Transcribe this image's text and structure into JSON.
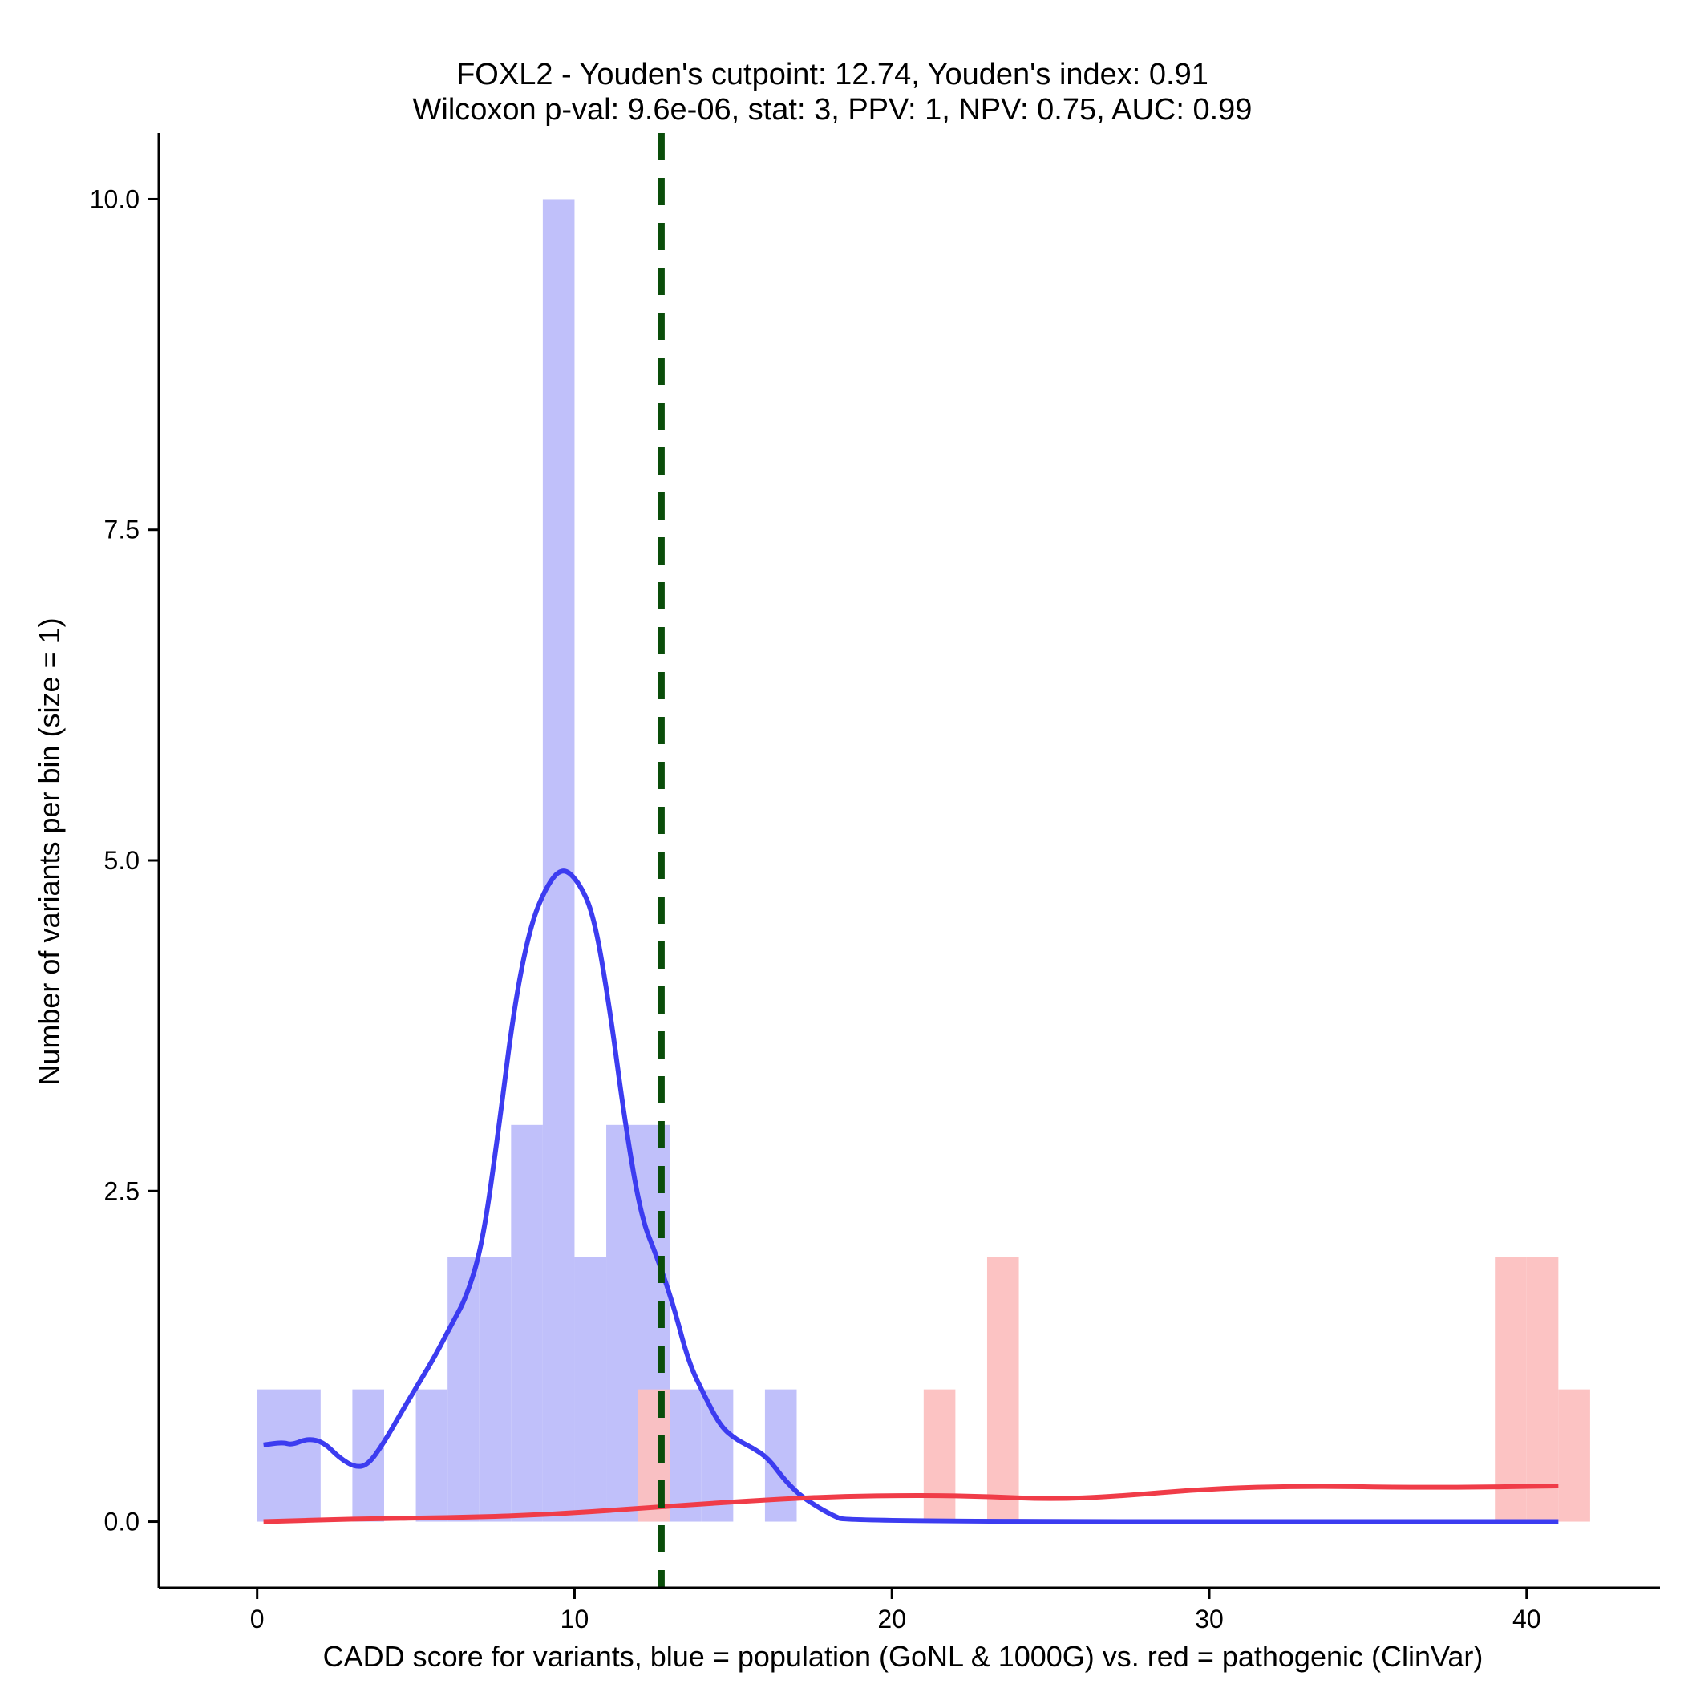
{
  "chart_data": {
    "type": "bar",
    "title": "FOXL2 - Youden's cutpoint: 12.74, Youden's index: 0.91",
    "subtitle": "Wilcoxon p-val: 9.6e-06, stat: 3, PPV: 1, NPV: 0.75, AUC: 0.99",
    "xlabel": "CADD score for variants, blue = population (GoNL & 1000G) vs. red = pathogenic (ClinVar)",
    "ylabel": "Number of variants per bin (size = 1)",
    "xlim": [
      -3.1,
      44.2
    ],
    "ylim": [
      -0.5,
      10.5
    ],
    "x_ticks": [
      0,
      10,
      20,
      30,
      40
    ],
    "x_tick_labels": [
      "0",
      "10",
      "20",
      "30",
      "40"
    ],
    "y_ticks": [
      0,
      2.5,
      5,
      7.5,
      10
    ],
    "y_tick_labels": [
      "0.0",
      "2.5",
      "5.0",
      "7.5",
      "10.0"
    ],
    "bin_width": 1,
    "cutpoint": 12.74,
    "colors": {
      "population_bar": "#c0c0fa",
      "pathogenic_bar": "#fcc0c0",
      "population_line": "#3c3cf0",
      "pathogenic_line": "#f03c48",
      "cutpoint_line": "#0a4d0a"
    },
    "series": [
      {
        "name": "population (GoNL & 1000G)",
        "bins": [
          {
            "start": 0,
            "count": 1
          },
          {
            "start": 1,
            "count": 1
          },
          {
            "start": 3,
            "count": 1
          },
          {
            "start": 5,
            "count": 1
          },
          {
            "start": 6,
            "count": 2
          },
          {
            "start": 7,
            "count": 2
          },
          {
            "start": 8,
            "count": 3
          },
          {
            "start": 9,
            "count": 10
          },
          {
            "start": 10,
            "count": 2
          },
          {
            "start": 11,
            "count": 3
          },
          {
            "start": 12,
            "count": 3
          },
          {
            "start": 13,
            "count": 1
          },
          {
            "start": 14,
            "count": 1
          },
          {
            "start": 16,
            "count": 1
          }
        ],
        "density": [
          [
            0.2,
            0.58
          ],
          [
            0.8,
            0.6
          ],
          [
            1.1,
            0.58
          ],
          [
            1.6,
            0.63
          ],
          [
            2.1,
            0.6
          ],
          [
            2.6,
            0.48
          ],
          [
            3.1,
            0.41
          ],
          [
            3.5,
            0.43
          ],
          [
            4.0,
            0.6
          ],
          [
            4.6,
            0.85
          ],
          [
            5.1,
            1.05
          ],
          [
            5.6,
            1.25
          ],
          [
            6.1,
            1.48
          ],
          [
            6.6,
            1.7
          ],
          [
            7.1,
            2.1
          ],
          [
            7.6,
            2.95
          ],
          [
            8.1,
            3.9
          ],
          [
            8.6,
            4.5
          ],
          [
            9.1,
            4.8
          ],
          [
            9.6,
            4.95
          ],
          [
            10.1,
            4.85
          ],
          [
            10.6,
            4.6
          ],
          [
            11.1,
            3.9
          ],
          [
            11.6,
            3.0
          ],
          [
            12.1,
            2.3
          ],
          [
            12.6,
            2.0
          ],
          [
            13.1,
            1.65
          ],
          [
            13.6,
            1.2
          ],
          [
            14.1,
            0.95
          ],
          [
            14.6,
            0.72
          ],
          [
            15.1,
            0.62
          ],
          [
            15.6,
            0.56
          ],
          [
            16.1,
            0.48
          ],
          [
            16.6,
            0.32
          ],
          [
            17.1,
            0.2
          ],
          [
            17.6,
            0.12
          ],
          [
            18.1,
            0.05
          ],
          [
            18.6,
            0.0
          ],
          [
            41.0,
            0.0
          ]
        ]
      },
      {
        "name": "pathogenic (ClinVar)",
        "bins": [
          {
            "start": 12,
            "count": 1
          },
          {
            "start": 21,
            "count": 1
          },
          {
            "start": 23,
            "count": 2
          },
          {
            "start": 39,
            "count": 2
          },
          {
            "start": 40,
            "count": 2
          },
          {
            "start": 41,
            "count": 1
          }
        ],
        "density": [
          [
            0.2,
            0.0
          ],
          [
            3.0,
            0.02
          ],
          [
            6.0,
            0.03
          ],
          [
            9.0,
            0.05
          ],
          [
            12.0,
            0.1
          ],
          [
            15.0,
            0.15
          ],
          [
            18.0,
            0.19
          ],
          [
            21.0,
            0.2
          ],
          [
            23.0,
            0.19
          ],
          [
            25.0,
            0.17
          ],
          [
            27.0,
            0.19
          ],
          [
            30.0,
            0.25
          ],
          [
            33.0,
            0.27
          ],
          [
            36.0,
            0.26
          ],
          [
            38.0,
            0.26
          ],
          [
            41.0,
            0.27
          ]
        ]
      }
    ]
  }
}
